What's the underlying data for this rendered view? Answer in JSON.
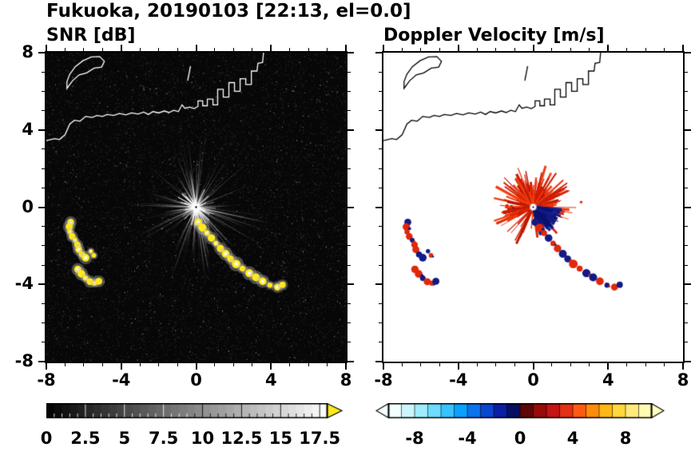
{
  "title": "Fukuoka, 20190103 [22:13, el=0.0]",
  "chart_data": [
    {
      "id": "snr",
      "type": "heatmap",
      "title": "SNR [dB]",
      "xlim": [
        -8,
        8
      ],
      "ylim": [
        -8,
        8
      ],
      "xtick_values": [
        -8,
        -4,
        0,
        4,
        8
      ],
      "xtick_labels": [
        "-8",
        "-4",
        "0",
        "4",
        "8"
      ],
      "ytick_values": [
        8,
        4,
        0,
        -4,
        -8
      ],
      "ytick_labels": [
        "8",
        "4",
        "0",
        "-4",
        "-8"
      ],
      "background": "#070707",
      "grid": false,
      "colorbar": {
        "orientation": "horizontal",
        "range": [
          0,
          18
        ],
        "tick_values": [
          0,
          2.5,
          5,
          7.5,
          10,
          12.5,
          15,
          17.5
        ],
        "tick_labels": [
          "0",
          "2.5",
          "5",
          "7.5",
          "10",
          "12.5",
          "15",
          "17.5"
        ],
        "style": "grayscale-black-to-white",
        "over_arrow_color": "#ffe91c"
      },
      "radar_center": [
        0,
        0
      ],
      "clutter": {
        "streak_count": 190,
        "max_range": 4.2,
        "color": "#ffffff"
      },
      "echo_color": "#ffe91c",
      "coast_color": "#ffffff"
    },
    {
      "id": "velocity",
      "type": "heatmap",
      "title": "Doppler Velocity [m/s]",
      "xlim": [
        -8,
        8
      ],
      "ylim": [
        -8,
        8
      ],
      "xtick_values": [
        -8,
        -4,
        0,
        4,
        8
      ],
      "xtick_labels": [
        "-8",
        "-4",
        "0",
        "4",
        "8"
      ],
      "ytick_values": [
        8,
        4,
        0,
        -4,
        -8
      ],
      "ytick_labels": [
        "8",
        "4",
        "0",
        "-4",
        "-8"
      ],
      "background": "#ffffff",
      "grid": false,
      "colorbar": {
        "orientation": "horizontal",
        "range": [
          -10,
          10
        ],
        "tick_values": [
          -8,
          -4,
          0,
          4,
          8
        ],
        "tick_labels": [
          "-8",
          "-4",
          "0",
          "4",
          "8"
        ],
        "segment_colors": [
          "#f2ffff",
          "#ccf6ff",
          "#9fecff",
          "#6cdcff",
          "#38c3ff",
          "#0ba1ff",
          "#0b72ee",
          "#0b46cf",
          "#0b1ea6",
          "#07105f",
          "#5f0707",
          "#990b0b",
          "#c41414",
          "#e33114",
          "#ff5a14",
          "#ff8c0b",
          "#ffb814",
          "#ffd83c",
          "#ffeb7a",
          "#fffcb0"
        ],
        "under_arrow_color": "#f4ffff",
        "over_arrow_color": "#ffffc0"
      },
      "radar_center": [
        0,
        0
      ],
      "fan": {
        "positive_color": "#e02808",
        "negative_color": "#121a85"
      },
      "coast_color": "#000000"
    }
  ],
  "echo_chains": [
    {
      "name": "west-arc-upper",
      "r": 0.16,
      "points": [
        [
          -6.7,
          -0.78
        ],
        [
          -6.78,
          -1.02
        ],
        [
          -6.74,
          -1.28
        ],
        [
          -6.62,
          -1.52
        ],
        [
          -6.46,
          -1.72
        ],
        [
          -6.34,
          -1.95
        ],
        [
          -6.27,
          -2.2
        ],
        [
          -6.1,
          -2.45
        ],
        [
          -5.9,
          -2.62
        ]
      ],
      "vel": [
        "n",
        "r",
        "r",
        "r",
        "n",
        "r",
        "r",
        "n",
        "n"
      ]
    },
    {
      "name": "west-arc-lower",
      "r": 0.17,
      "points": [
        [
          -6.32,
          -3.22
        ],
        [
          -6.12,
          -3.46
        ],
        [
          -5.9,
          -3.68
        ],
        [
          -5.66,
          -3.86
        ],
        [
          -5.42,
          -3.94
        ],
        [
          -5.2,
          -3.84
        ]
      ],
      "vel": [
        "r",
        "r",
        "n",
        "r",
        "r",
        "n"
      ]
    },
    {
      "name": "west-dots",
      "r": 0.1,
      "points": [
        [
          -5.62,
          -2.28
        ],
        [
          -5.46,
          -2.5
        ]
      ],
      "vel": [
        "n",
        "r"
      ]
    },
    {
      "name": "main-chain",
      "r": 0.18,
      "points": [
        [
          0.12,
          -0.78
        ],
        [
          0.34,
          -1.06
        ],
        [
          0.58,
          -1.34
        ],
        [
          0.82,
          -1.6
        ],
        [
          1.06,
          -1.88
        ],
        [
          1.3,
          -2.14
        ],
        [
          1.58,
          -2.42
        ],
        [
          1.84,
          -2.68
        ],
        [
          2.14,
          -2.94
        ],
        [
          2.48,
          -3.18
        ],
        [
          2.84,
          -3.42
        ],
        [
          3.2,
          -3.64
        ],
        [
          3.56,
          -3.84
        ],
        [
          3.94,
          -4.04
        ],
        [
          4.34,
          -4.14
        ],
        [
          4.62,
          -4.02
        ]
      ],
      "vel": [
        "n",
        "r",
        "r",
        "n",
        "r",
        "r",
        "n",
        "n",
        "r",
        "r",
        "n",
        "n",
        "r",
        "n",
        "r",
        "n"
      ]
    },
    {
      "name": "center-dashes",
      "r": 0.08,
      "show_snr": false,
      "points": [
        [
          -1.4,
          0.06
        ],
        [
          -1.16,
          0.02
        ],
        [
          2.56,
          0.26
        ]
      ],
      "vel": [
        "r",
        "r",
        "r"
      ]
    }
  ],
  "coastline": {
    "main": [
      [
        -8.0,
        3.45
      ],
      [
        -7.55,
        3.55
      ],
      [
        -7.3,
        3.5
      ],
      [
        -7.0,
        3.75
      ],
      [
        -6.75,
        4.3
      ],
      [
        -6.5,
        4.5
      ],
      [
        -6.2,
        4.45
      ],
      [
        -5.9,
        4.7
      ],
      [
        -5.55,
        4.65
      ],
      [
        -5.3,
        4.75
      ],
      [
        -5.0,
        4.7
      ],
      [
        -4.75,
        4.8
      ],
      [
        -4.4,
        4.75
      ],
      [
        -4.1,
        4.85
      ],
      [
        -3.75,
        4.78
      ],
      [
        -3.45,
        4.88
      ],
      [
        -3.1,
        4.82
      ],
      [
        -2.8,
        4.92
      ],
      [
        -2.55,
        4.8
      ],
      [
        -2.3,
        4.95
      ],
      [
        -2.0,
        4.88
      ],
      [
        -1.7,
        4.98
      ],
      [
        -1.45,
        4.9
      ],
      [
        -1.2,
        5.02
      ],
      [
        -0.95,
        4.95
      ],
      [
        -0.75,
        5.3
      ],
      [
        -0.6,
        5.12
      ],
      [
        -0.35,
        5.18
      ],
      [
        -0.1,
        5.1
      ],
      [
        0.1,
        5.22
      ],
      [
        0.1,
        5.5
      ],
      [
        0.35,
        5.5
      ],
      [
        0.35,
        5.25
      ],
      [
        0.6,
        5.25
      ],
      [
        0.6,
        5.6
      ],
      [
        0.9,
        5.6
      ],
      [
        0.9,
        5.3
      ],
      [
        1.15,
        5.3
      ],
      [
        1.15,
        6.1
      ],
      [
        1.45,
        6.1
      ],
      [
        1.45,
        5.7
      ],
      [
        1.75,
        5.7
      ],
      [
        1.75,
        6.45
      ],
      [
        2.05,
        6.45
      ],
      [
        2.05,
        6.0
      ],
      [
        2.35,
        6.0
      ],
      [
        2.35,
        6.65
      ],
      [
        2.65,
        6.65
      ],
      [
        2.65,
        6.35
      ],
      [
        2.95,
        6.35
      ],
      [
        2.95,
        7.05
      ],
      [
        3.25,
        7.05
      ],
      [
        3.3,
        7.45
      ],
      [
        3.55,
        7.5
      ],
      [
        3.6,
        8.0
      ]
    ],
    "island": [
      [
        -6.9,
        6.15
      ],
      [
        -6.6,
        6.55
      ],
      [
        -6.25,
        6.85
      ],
      [
        -5.85,
        6.95
      ],
      [
        -5.45,
        7.2
      ],
      [
        -5.05,
        7.25
      ],
      [
        -4.9,
        7.55
      ],
      [
        -5.15,
        7.8
      ],
      [
        -5.6,
        7.78
      ],
      [
        -6.05,
        7.58
      ],
      [
        -6.45,
        7.28
      ],
      [
        -6.75,
        6.88
      ],
      [
        -6.9,
        6.5
      ]
    ],
    "spit": [
      [
        -0.45,
        6.55
      ],
      [
        -0.3,
        7.3
      ]
    ]
  }
}
